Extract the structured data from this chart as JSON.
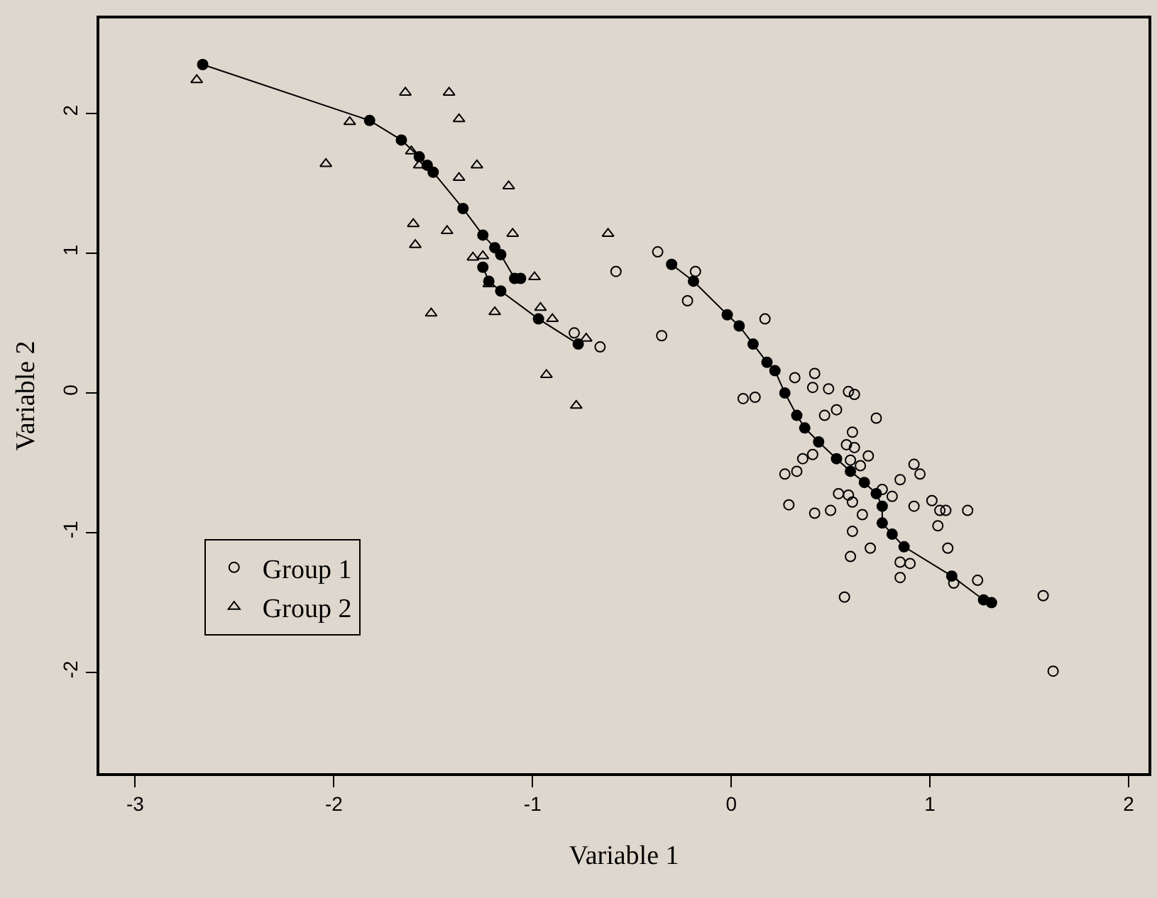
{
  "chart_data": {
    "type": "scatter",
    "xlabel": "Variable 1",
    "ylabel": "Variable 2",
    "xlim": [
      -3.18,
      2.1
    ],
    "ylim": [
      -2.72,
      2.68
    ],
    "xticks": [
      -3,
      -2,
      -1,
      0,
      1,
      2
    ],
    "yticks": [
      -2,
      -1,
      0,
      1,
      2
    ],
    "grid": false,
    "legend": "bottom left",
    "series": [
      {
        "name": "Group 1",
        "type": "scatter",
        "marker": "circle",
        "color": "#000000",
        "x": [
          -0.58,
          -0.79,
          -0.66,
          -0.37,
          -0.18,
          -0.22,
          -0.35,
          0.17,
          0.32,
          0.42,
          0.41,
          0.49,
          0.59,
          0.62,
          0.06,
          0.12,
          0.47,
          0.53,
          0.73,
          0.61,
          0.58,
          0.62,
          0.69,
          0.36,
          0.41,
          0.33,
          0.27,
          0.6,
          0.65,
          0.92,
          0.95,
          0.85,
          0.29,
          0.42,
          0.5,
          0.54,
          0.59,
          0.61,
          0.66,
          0.76,
          0.81,
          0.92,
          1.01,
          1.05,
          1.08,
          1.19,
          1.04,
          0.61,
          1.09,
          0.7,
          0.6,
          0.85,
          0.9,
          0.85,
          1.12,
          1.24,
          0.57,
          1.57,
          1.62
        ],
        "values": [
          0.87,
          0.43,
          0.33,
          1.01,
          0.87,
          0.66,
          0.41,
          0.53,
          0.11,
          0.14,
          0.04,
          0.03,
          0.01,
          -0.01,
          -0.04,
          -0.03,
          -0.16,
          -0.12,
          -0.18,
          -0.28,
          -0.37,
          -0.39,
          -0.45,
          -0.47,
          -0.44,
          -0.56,
          -0.58,
          -0.48,
          -0.52,
          -0.51,
          -0.58,
          -0.62,
          -0.8,
          -0.86,
          -0.84,
          -0.72,
          -0.73,
          -0.78,
          -0.87,
          -0.69,
          -0.74,
          -0.81,
          -0.77,
          -0.84,
          -0.84,
          -0.84,
          -0.95,
          -0.99,
          -1.11,
          -1.11,
          -1.17,
          -1.21,
          -1.22,
          -1.32,
          -1.36,
          -1.34,
          -1.46,
          -1.45,
          -1.99
        ]
      },
      {
        "name": "Group 2",
        "type": "scatter",
        "marker": "triangle",
        "color": "#000000",
        "x": [
          -2.69,
          -1.64,
          -1.42,
          -1.92,
          -1.37,
          -2.04,
          -1.61,
          -1.57,
          -1.28,
          -1.37,
          -1.12,
          -1.6,
          -1.59,
          -1.43,
          -1.1,
          -0.62,
          -1.3,
          -1.25,
          -0.99,
          -1.51,
          -1.19,
          -0.96,
          -0.9,
          -0.73,
          -0.93,
          -0.78,
          -1.22
        ],
        "values": [
          2.24,
          2.15,
          2.15,
          1.94,
          1.96,
          1.64,
          1.73,
          1.63,
          1.63,
          1.54,
          1.48,
          1.21,
          1.06,
          1.16,
          1.14,
          1.14,
          0.97,
          0.98,
          0.83,
          0.57,
          0.58,
          0.61,
          0.53,
          0.39,
          0.13,
          -0.09,
          0.78
        ]
      },
      {
        "type": "line",
        "marker": "circle",
        "color": "#000000",
        "x": [
          -2.66,
          -1.82,
          -1.66,
          -1.57,
          -1.53,
          -1.5,
          -1.35,
          -1.25,
          -1.19,
          -1.16,
          -1.09,
          -1.06
        ],
        "values": [
          2.35,
          1.95,
          1.81,
          1.69,
          1.63,
          1.58,
          1.32,
          1.13,
          1.04,
          0.99,
          0.82,
          0.82
        ]
      },
      {
        "type": "line",
        "marker": "circle",
        "color": "#000000",
        "x": [
          -1.25,
          -1.22,
          -1.16,
          -0.97,
          -0.77
        ],
        "values": [
          0.9,
          0.8,
          0.73,
          0.53,
          0.35
        ]
      },
      {
        "type": "line",
        "marker": "circle",
        "color": "#000000",
        "x": [
          -0.3,
          -0.19,
          -0.02,
          0.04,
          0.11,
          0.18,
          0.22,
          0.27,
          0.33,
          0.37,
          0.44,
          0.53,
          0.6,
          0.67,
          0.73,
          0.76,
          0.76,
          0.81,
          0.87,
          1.11,
          1.27,
          1.31
        ],
        "values": [
          0.92,
          0.8,
          0.56,
          0.48,
          0.35,
          0.22,
          0.16,
          0,
          -0.16,
          -0.25,
          -0.35,
          -0.47,
          -0.56,
          -0.64,
          -0.72,
          -0.81,
          -0.93,
          -1.01,
          -1.1,
          -1.31,
          -1.48,
          -1.5
        ]
      }
    ]
  }
}
